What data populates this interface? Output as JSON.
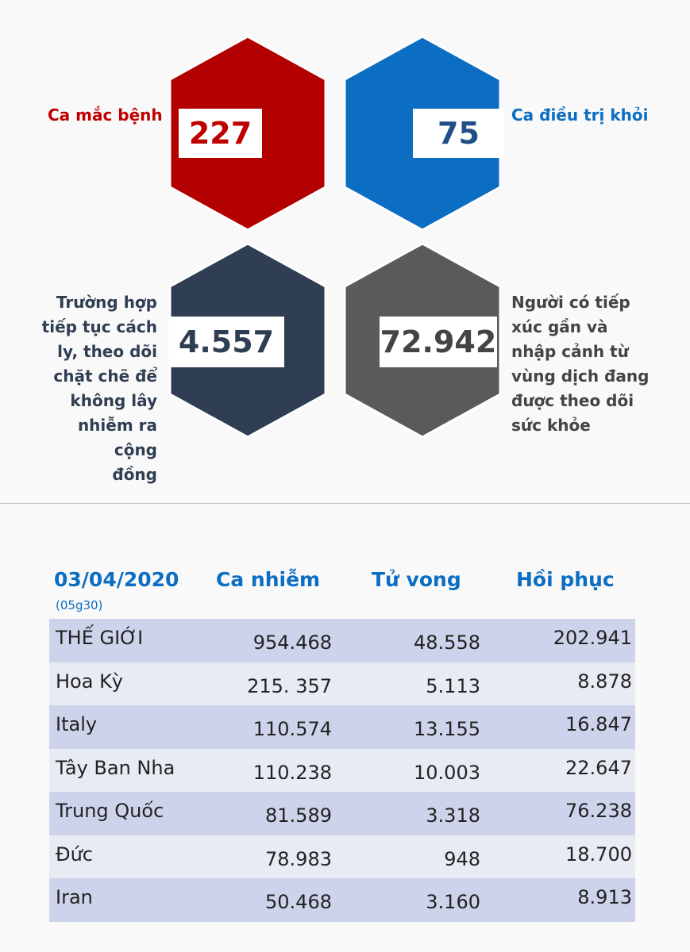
{
  "stats": {
    "infected": {
      "label": "Ca mắc bệnh",
      "value": "227",
      "color": "#c00000"
    },
    "recovered": {
      "label": "Ca điều trị khỏi",
      "value": "75",
      "color": "#0b6ec2"
    },
    "isolated": {
      "label_lines": [
        "Trường hợp",
        "tiếp tục cách",
        "ly, theo dõi",
        "chặt chẽ để",
        "không lây",
        "nhiễm ra cộng",
        "đồng"
      ],
      "value": "4.557",
      "color": "#2f3e52"
    },
    "monitored": {
      "label_lines": [
        "Người có tiếp",
        "xúc gần và",
        "nhập cảnh từ",
        "vùng dịch đang",
        "được theo dõi",
        "sức khỏe"
      ],
      "value": "72.942",
      "color": "#5a5a5a"
    }
  },
  "table": {
    "date": "03/04/2020",
    "time": "(05g30)",
    "headers": [
      "Ca nhiễm",
      "Tử vong",
      "Hồi phục"
    ],
    "rows": [
      {
        "name": "THẾ GIỚI",
        "cases": "954.468",
        "deaths": "48.558",
        "recovered": "202.941"
      },
      {
        "name": "Hoa Kỳ",
        "cases": "215. 357",
        "deaths": "5.113",
        "recovered": "8.878"
      },
      {
        "name": "Italy",
        "cases": "110.574",
        "deaths": "13.155",
        "recovered": "16.847"
      },
      {
        "name": "Tây Ban Nha",
        "cases": "110.238",
        "deaths": "10.003",
        "recovered": "22.647"
      },
      {
        "name": "Trung Quốc",
        "cases": "81.589",
        "deaths": "3.318",
        "recovered": "76.238"
      },
      {
        "name": "Đức",
        "cases": "78.983",
        "deaths": "948",
        "recovered": "18.700"
      },
      {
        "name": "Iran",
        "cases": "50.468",
        "deaths": "3.160",
        "recovered": "8.913"
      }
    ]
  }
}
